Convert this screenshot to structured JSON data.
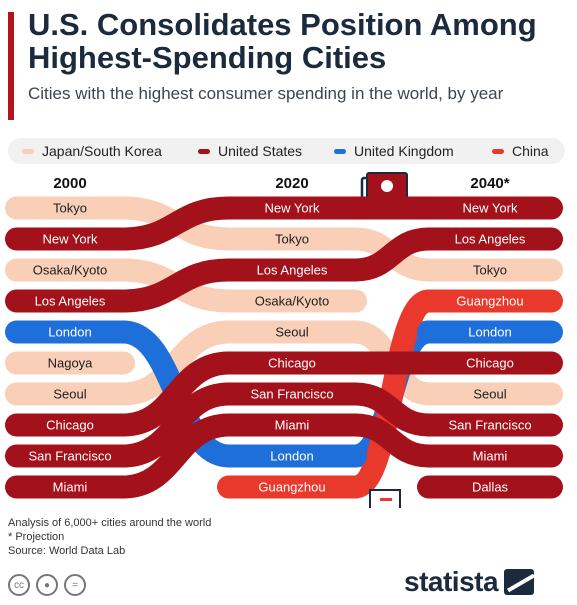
{
  "header": {
    "title": "U.S. Consolidates Position Among Highest-Spending Cities",
    "subtitle": "Cities with the highest consumer spending in the world, by year"
  },
  "colors": {
    "Japan/South Korea": "#f9cfb8",
    "United States": "#a3111a",
    "United Kingdom": "#1e6fd9",
    "China": "#e8392c",
    "accent": "#b5121b",
    "text_dark": "#1b2a3c"
  },
  "chart_data": {
    "type": "table",
    "description_type": "ranking bump chart",
    "columns": [
      "2000",
      "2020",
      "2040*"
    ],
    "legend": [
      {
        "name": "Japan/South Korea",
        "color": "#f9cfb8"
      },
      {
        "name": "United States",
        "color": "#a3111a"
      },
      {
        "name": "United Kingdom",
        "color": "#1e6fd9"
      },
      {
        "name": "China",
        "color": "#e8392c"
      }
    ],
    "rankings": {
      "2000": [
        "Tokyo",
        "New York",
        "Osaka/Kyoto",
        "Los Angeles",
        "London",
        "Nagoya",
        "Seoul",
        "Chicago",
        "San Francisco",
        "Miami"
      ],
      "2020": [
        "New York",
        "Tokyo",
        "Los Angeles",
        "Osaka/Kyoto",
        "Seoul",
        "Chicago",
        "San Francisco",
        "Miami",
        "London",
        "Guangzhou"
      ],
      "2040*": [
        "New York",
        "Los Angeles",
        "Tokyo",
        "Guangzhou",
        "London",
        "Chicago",
        "Seoul",
        "San Francisco",
        "Miami",
        "Dallas"
      ]
    },
    "cities": {
      "Tokyo": "Japan/South Korea",
      "Osaka/Kyoto": "Japan/South Korea",
      "Nagoya": "Japan/South Korea",
      "Seoul": "Japan/South Korea",
      "New York": "United States",
      "Los Angeles": "United States",
      "Chicago": "United States",
      "San Francisco": "United States",
      "Miami": "United States",
      "Dallas": "United States",
      "London": "United Kingdom",
      "Guangzhou": "China"
    }
  },
  "footer": {
    "note1": "Analysis of 6,000+ cities around the world",
    "note2": "* Projection",
    "source": "Source: World Data Lab",
    "brand": "statista"
  },
  "icons": [
    "money-bills-icon",
    "buildings-icon",
    "cc-icon",
    "person-icon",
    "equal-icon"
  ]
}
